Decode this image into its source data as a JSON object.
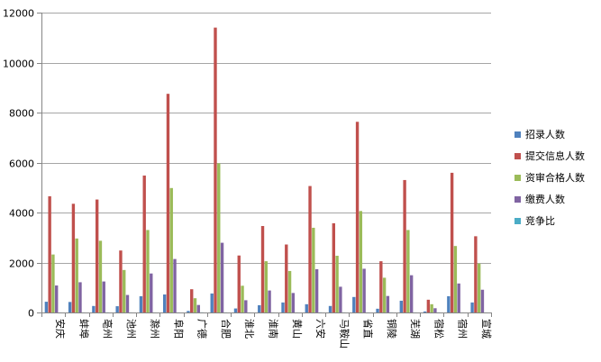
{
  "chart_data": {
    "type": "bar",
    "categories": [
      "安庆",
      "蚌埠",
      "亳州",
      "池州",
      "滁州",
      "阜阳",
      "广德",
      "合肥",
      "淮北",
      "淮南",
      "黄山",
      "六安",
      "马鞍山",
      "省直",
      "铜陵",
      "芜湖",
      "宿松",
      "宿州",
      "宣城"
    ],
    "series": [
      {
        "name": "招录人数",
        "color": "#4f81bd",
        "values": [
          430,
          420,
          260,
          250,
          650,
          720,
          60,
          760,
          160,
          290,
          400,
          330,
          260,
          620,
          150,
          470,
          40,
          650,
          400
        ]
      },
      {
        "name": "提交信息人数",
        "color": "#c0504d",
        "values": [
          4650,
          4350,
          4520,
          2480,
          5480,
          8750,
          930,
          11400,
          2280,
          3460,
          2720,
          5060,
          3570,
          7630,
          2050,
          5300,
          510,
          5590,
          3050
        ]
      },
      {
        "name": "资审合格人数",
        "color": "#9bbb59",
        "values": [
          2320,
          2960,
          2870,
          1700,
          3300,
          4980,
          570,
          5970,
          1070,
          2050,
          1660,
          3390,
          2270,
          4060,
          1390,
          3300,
          330,
          2660,
          1960
        ]
      },
      {
        "name": "缴费人数",
        "color": "#8064a2",
        "values": [
          1080,
          1210,
          1240,
          700,
          1560,
          2140,
          300,
          2790,
          490,
          880,
          780,
          1730,
          1030,
          1750,
          660,
          1490,
          170,
          1160,
          910
        ]
      },
      {
        "name": "竞争比",
        "color": "#4bacc6",
        "values": [
          2.5,
          2.9,
          4.8,
          2.8,
          2.4,
          3,
          5,
          3.7,
          3.1,
          3,
          2,
          5.2,
          4,
          2.8,
          4.4,
          3.2,
          4.3,
          1.8,
          2.3
        ]
      }
    ],
    "ylim": [
      0,
      12000
    ],
    "yticks": [
      0,
      2000,
      4000,
      6000,
      8000,
      10000,
      12000
    ],
    "grid": true,
    "legend": "right"
  }
}
